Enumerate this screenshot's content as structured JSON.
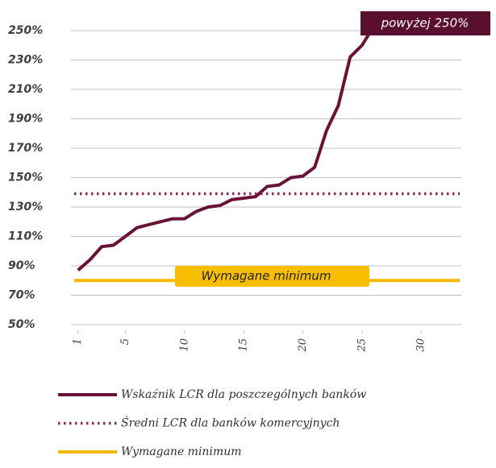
{
  "chart_data": {
    "type": "line",
    "x": [
      1,
      2,
      3,
      4,
      5,
      6,
      7,
      8,
      9,
      10,
      11,
      12,
      13,
      14,
      15,
      16,
      17,
      18,
      19,
      20,
      21,
      22,
      23,
      24,
      25,
      26
    ],
    "series": [
      {
        "name": "Wskaźnik LCR dla poszczególnych banków",
        "color": "#6b1238",
        "values": [
          87,
          94,
          103,
          104,
          110,
          116,
          118,
          120,
          122,
          122,
          127,
          130,
          131,
          135,
          136,
          137,
          144,
          145,
          150,
          151,
          157,
          182,
          199,
          232,
          240,
          253
        ]
      },
      {
        "name": "Średni LCR dla banków komercyjnych",
        "color": "#8b2a52",
        "style": "dotted",
        "value": 139
      },
      {
        "name": "Wymagane minimum",
        "color": "#f5b800",
        "style": "solid",
        "value": 80
      }
    ],
    "annotations": [
      "powyżej 250%",
      "Wymagane minimum"
    ],
    "xlim": [
      0.2,
      33.6
    ],
    "xticks": [
      1,
      5,
      10,
      15,
      20,
      25,
      30
    ],
    "ylim": [
      48,
      254
    ],
    "yticks": [
      {
        "value": 50,
        "label": "50%"
      },
      {
        "value": 70,
        "label": "70%"
      },
      {
        "value": 90,
        "label": "90%"
      },
      {
        "value": 110,
        "label": "110%"
      },
      {
        "value": 130,
        "label": "130%"
      },
      {
        "value": 150,
        "label": "150%"
      },
      {
        "value": 170,
        "label": "170%"
      },
      {
        "value": 190,
        "label": "190%"
      },
      {
        "value": 210,
        "label": "210%"
      },
      {
        "value": 230,
        "label": "230%"
      },
      {
        "value": 250,
        "label": "250%"
      }
    ],
    "grid": true
  }
}
